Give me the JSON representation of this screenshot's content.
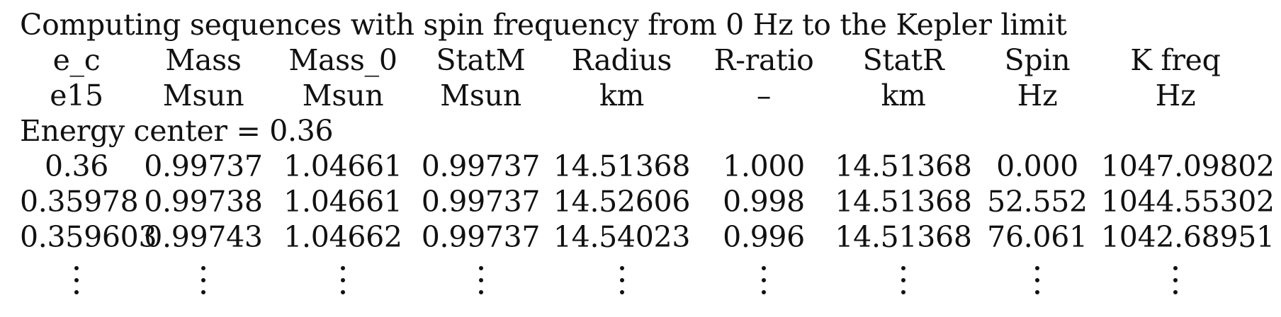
{
  "title": "Computing sequences with spin frequency from 0 Hz to the Kepler limit",
  "columns": [
    "e_c",
    "Mass",
    "Mass_0",
    "StatM",
    "Radius",
    "R-ratio",
    "StatR",
    "Spin",
    "K freq"
  ],
  "units": [
    "e15",
    "Msun",
    "Msun",
    "Msun",
    "km",
    "–",
    "km",
    "Hz",
    "Hz"
  ],
  "section_label": "Energy center = 0.36",
  "rows": [
    [
      "0.36",
      "0.99737",
      "1.04661",
      "0.99737",
      "14.51368",
      "1.000",
      "14.51368",
      "0.000",
      "1047.09802"
    ],
    [
      "0.35978",
      "0.99738",
      "1.04661",
      "0.99737",
      "14.52606",
      "0.998",
      "14.51368",
      "52.552",
      "1044.55302"
    ],
    [
      "0.359603",
      "0.99743",
      "1.04662",
      "0.99737",
      "14.54023",
      "0.996",
      "14.51368",
      "76.061",
      "1042.68951"
    ]
  ],
  "continuation_symbol": "vertical-ellipsis"
}
